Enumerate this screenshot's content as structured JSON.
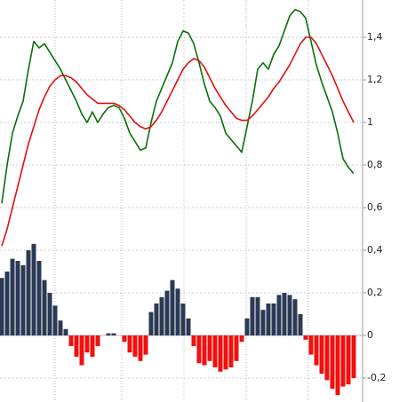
{
  "chart_data": {
    "type": "combo",
    "ylim": [
      -0.3125,
      1.575
    ],
    "yticks": [
      {
        "value": 1.4,
        "label": "1,4"
      },
      {
        "value": 1.2,
        "label": "1,2"
      },
      1,
      {
        "value": 0.8,
        "label": "0,8"
      },
      {
        "value": 0.6,
        "label": "0,6"
      },
      {
        "value": 0.4,
        "label": "0,4"
      },
      {
        "value": 0.2,
        "label": "0,2"
      },
      0,
      {
        "value": -0.2,
        "label": "-0,2"
      }
    ],
    "grid": true,
    "series": [
      {
        "type": "bar",
        "color": "#2b3a55",
        "negative_color": "#f01010",
        "values": [
          0.27,
          0.3,
          0.36,
          0.35,
          0.33,
          0.4,
          0.43,
          0.35,
          0.26,
          0.2,
          0.14,
          0.07,
          0.03,
          -0.05,
          -0.1,
          -0.14,
          -0.08,
          -0.1,
          -0.05,
          0,
          0.01,
          0.01,
          0,
          -0.03,
          -0.08,
          -0.1,
          -0.12,
          -0.09,
          0.11,
          0.15,
          0.18,
          0.21,
          0.26,
          0.22,
          0.15,
          0.08,
          -0.05,
          -0.13,
          -0.14,
          -0.12,
          -0.15,
          -0.17,
          -0.16,
          -0.15,
          -0.12,
          -0.03,
          0.08,
          0.18,
          0.18,
          0.12,
          0.15,
          0.15,
          0.19,
          0.2,
          0.19,
          0.17,
          0.1,
          -0.02,
          -0.09,
          -0.14,
          -0.18,
          -0.21,
          -0.25,
          -0.28,
          -0.24,
          -0.23,
          -0.2
        ]
      },
      {
        "type": "line",
        "color": "#0a6e0a",
        "values": [
          0.62,
          0.8,
          0.95,
          1.03,
          1.1,
          1.25,
          1.38,
          1.35,
          1.37,
          1.33,
          1.29,
          1.25,
          1.2,
          1.15,
          1.1,
          1.04,
          1.0,
          1.05,
          1.0,
          1.04,
          1.07,
          1.08,
          1.07,
          1.02,
          0.95,
          0.91,
          0.87,
          0.88,
          1.0,
          1.1,
          1.16,
          1.22,
          1.28,
          1.38,
          1.43,
          1.42,
          1.37,
          1.28,
          1.18,
          1.1,
          1.07,
          1.03,
          0.95,
          0.92,
          0.89,
          0.86,
          0.98,
          1.1,
          1.25,
          1.28,
          1.25,
          1.32,
          1.36,
          1.43,
          1.5,
          1.53,
          1.52,
          1.49,
          1.38,
          1.27,
          1.19,
          1.12,
          1.05,
          0.95,
          0.83,
          0.79,
          0.76
        ]
      },
      {
        "type": "line",
        "color": "#e01010",
        "values": [
          0.42,
          0.5,
          0.6,
          0.7,
          0.8,
          0.9,
          0.98,
          1.06,
          1.12,
          1.17,
          1.2,
          1.22,
          1.22,
          1.21,
          1.19,
          1.16,
          1.13,
          1.11,
          1.09,
          1.09,
          1.09,
          1.09,
          1.08,
          1.06,
          1.03,
          1.0,
          0.98,
          0.97,
          0.98,
          1.01,
          1.05,
          1.1,
          1.15,
          1.2,
          1.25,
          1.28,
          1.3,
          1.29,
          1.26,
          1.21,
          1.16,
          1.12,
          1.08,
          1.05,
          1.02,
          1.01,
          1.01,
          1.03,
          1.06,
          1.09,
          1.12,
          1.16,
          1.19,
          1.23,
          1.27,
          1.32,
          1.37,
          1.4,
          1.4,
          1.37,
          1.32,
          1.27,
          1.22,
          1.16,
          1.1,
          1.05,
          1.0
        ]
      }
    ]
  }
}
